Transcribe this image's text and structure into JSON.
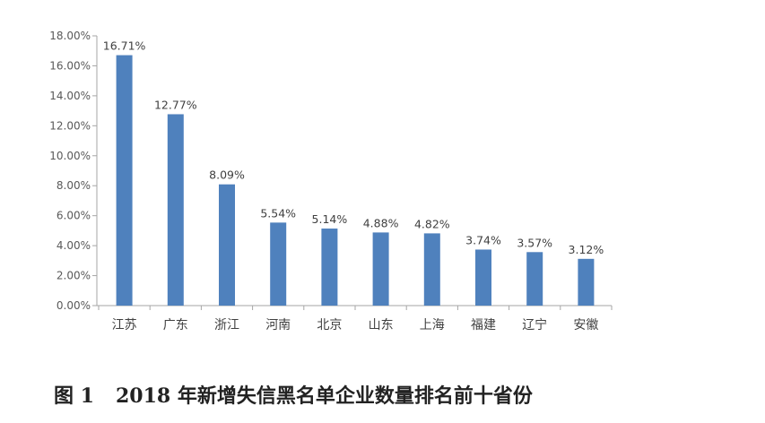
{
  "caption": {
    "figure_no": "图 1",
    "text": "2018 年新增失信黑名单企业数量排名前十省份"
  },
  "colors": {
    "bar": "#4F81BD",
    "axis": "#A6A6A6",
    "text": "#404040"
  },
  "chart_data": {
    "type": "bar",
    "categories": [
      "江苏",
      "广东",
      "浙江",
      "河南",
      "北京",
      "山东",
      "上海",
      "福建",
      "辽宁",
      "安徽"
    ],
    "values": [
      16.71,
      12.77,
      8.09,
      5.54,
      5.14,
      4.88,
      4.82,
      3.74,
      3.57,
      3.12
    ],
    "data_labels": [
      "16.71%",
      "12.77%",
      "8.09%",
      "5.54%",
      "5.14%",
      "4.88%",
      "4.82%",
      "3.74%",
      "3.57%",
      "3.12%"
    ],
    "y_ticks": [
      0,
      2,
      4,
      6,
      8,
      10,
      12,
      14,
      16,
      18
    ],
    "y_tick_labels": [
      "0.00%",
      "2.00%",
      "4.00%",
      "6.00%",
      "8.00%",
      "10.00%",
      "12.00%",
      "14.00%",
      "16.00%",
      "18.00%"
    ],
    "ylim": [
      0,
      18
    ],
    "title": "",
    "xlabel": "",
    "ylabel": "",
    "grid": false,
    "legend": "none"
  }
}
